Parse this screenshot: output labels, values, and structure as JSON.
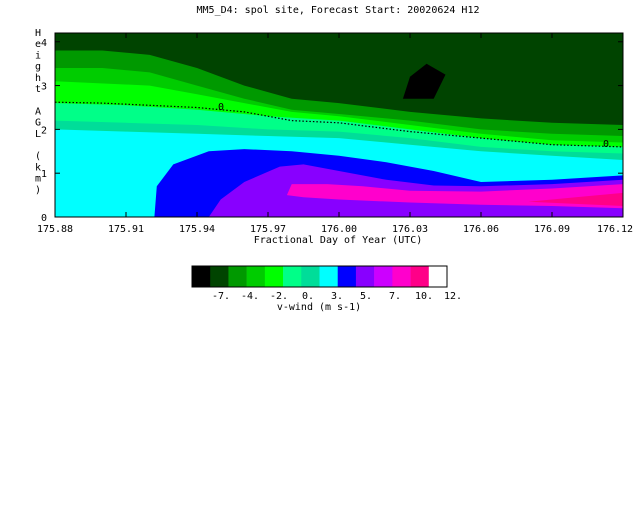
{
  "chart_data": {
    "type": "contour",
    "title": "MM5_D4: spol site,  Forecast Start: 20020624 H12",
    "xlabel": "Fractional Day of Year (UTC)",
    "ylabel": "Height AGL (km)",
    "xlim": [
      175.88,
      176.12
    ],
    "ylim": [
      0,
      4.2
    ],
    "x_ticks": [
      "175.88",
      "175.91",
      "175.94",
      "175.97",
      "176.00",
      "176.03",
      "176.06",
      "176.09",
      "176.12"
    ],
    "x_tick_values": [
      175.88,
      175.91,
      175.94,
      175.97,
      176.0,
      176.03,
      176.06,
      176.09,
      176.12
    ],
    "y_ticks": [
      "0",
      "1",
      "2",
      "3",
      "4"
    ],
    "y_tick_values": [
      0,
      1,
      2,
      3,
      4
    ],
    "zero_contour_labels": [
      "0",
      "0"
    ],
    "colorbar": {
      "label": "v-wind (m s-1)",
      "tick_labels": [
        "-7.",
        "-4.",
        "-2.",
        "0.",
        "3.",
        "5.",
        "7.",
        "10.",
        "12."
      ],
      "colors": [
        "#000000",
        "#004400",
        "#009900",
        "#00cc00",
        "#00ff00",
        "#00ff88",
        "#00dd99",
        "#00ffff",
        "#0000ff",
        "#8800ff",
        "#cc00ff",
        "#ff00cc",
        "#ff0088",
        "#ffffff"
      ]
    },
    "regions": [
      {
        "color": "#004400",
        "outline": [
          [
            175.88,
            4.2
          ],
          [
            176.12,
            4.2
          ],
          [
            176.12,
            0
          ],
          [
            175.88,
            0
          ]
        ]
      },
      {
        "color": "#009900",
        "outline": [
          [
            175.88,
            3.8
          ],
          [
            175.9,
            3.8
          ],
          [
            175.92,
            3.7
          ],
          [
            175.94,
            3.4
          ],
          [
            175.96,
            3.0
          ],
          [
            175.98,
            2.7
          ],
          [
            176.0,
            2.6
          ],
          [
            176.03,
            2.4
          ],
          [
            176.06,
            2.25
          ],
          [
            176.09,
            2.15
          ],
          [
            176.12,
            2.1
          ],
          [
            176.12,
            0
          ],
          [
            175.88,
            0
          ]
        ]
      },
      {
        "color": "#00cc00",
        "outline": [
          [
            175.88,
            3.4
          ],
          [
            175.9,
            3.4
          ],
          [
            175.92,
            3.3
          ],
          [
            175.94,
            3.0
          ],
          [
            175.96,
            2.7
          ],
          [
            175.98,
            2.45
          ],
          [
            176.0,
            2.35
          ],
          [
            176.03,
            2.2
          ],
          [
            176.06,
            2.0
          ],
          [
            176.09,
            1.9
          ],
          [
            176.12,
            1.85
          ],
          [
            176.12,
            0
          ],
          [
            175.88,
            0
          ]
        ]
      },
      {
        "color": "#00ff00",
        "outline": [
          [
            175.88,
            3.1
          ],
          [
            175.92,
            3.0
          ],
          [
            175.94,
            2.8
          ],
          [
            175.96,
            2.6
          ],
          [
            175.98,
            2.4
          ],
          [
            176.0,
            2.3
          ],
          [
            176.03,
            2.1
          ],
          [
            176.06,
            1.9
          ],
          [
            176.09,
            1.75
          ],
          [
            176.12,
            1.7
          ],
          [
            176.12,
            0
          ],
          [
            175.88,
            0
          ]
        ]
      },
      {
        "color": "#00ff88",
        "outline": [
          [
            175.88,
            2.6
          ],
          [
            175.91,
            2.55
          ],
          [
            175.94,
            2.45
          ],
          [
            175.97,
            2.3
          ],
          [
            176.0,
            2.2
          ],
          [
            176.03,
            2.0
          ],
          [
            176.06,
            1.8
          ],
          [
            176.09,
            1.65
          ],
          [
            176.12,
            1.6
          ],
          [
            176.12,
            0
          ],
          [
            175.88,
            0
          ]
        ]
      },
      {
        "color": "#00dd99",
        "outline": [
          [
            175.88,
            2.2
          ],
          [
            175.91,
            2.15
          ],
          [
            175.94,
            2.1
          ],
          [
            175.97,
            2.0
          ],
          [
            176.0,
            1.95
          ],
          [
            176.03,
            1.8
          ],
          [
            176.06,
            1.6
          ],
          [
            176.09,
            1.5
          ],
          [
            176.12,
            1.45
          ],
          [
            176.12,
            0
          ],
          [
            175.88,
            0
          ]
        ]
      },
      {
        "color": "#00ffff",
        "outline": [
          [
            175.88,
            2.0
          ],
          [
            175.91,
            1.95
          ],
          [
            175.94,
            1.9
          ],
          [
            175.97,
            1.85
          ],
          [
            176.0,
            1.8
          ],
          [
            176.03,
            1.65
          ],
          [
            176.06,
            1.5
          ],
          [
            176.09,
            1.4
          ],
          [
            176.12,
            1.3
          ],
          [
            176.12,
            0
          ],
          [
            175.88,
            0
          ]
        ]
      },
      {
        "color": "#0000ff",
        "outline": [
          [
            175.922,
            0
          ],
          [
            175.923,
            0.7
          ],
          [
            175.93,
            1.2
          ],
          [
            175.945,
            1.5
          ],
          [
            175.96,
            1.55
          ],
          [
            175.98,
            1.5
          ],
          [
            176.0,
            1.4
          ],
          [
            176.02,
            1.25
          ],
          [
            176.04,
            1.05
          ],
          [
            176.06,
            0.8
          ],
          [
            176.09,
            0.85
          ],
          [
            176.12,
            0.95
          ],
          [
            176.12,
            0
          ]
        ]
      },
      {
        "color": "#8800ff",
        "outline": [
          [
            175.945,
            0
          ],
          [
            175.95,
            0.4
          ],
          [
            175.96,
            0.8
          ],
          [
            175.975,
            1.15
          ],
          [
            175.985,
            1.2
          ],
          [
            176.0,
            1.05
          ],
          [
            176.02,
            0.85
          ],
          [
            176.04,
            0.72
          ],
          [
            176.06,
            0.7
          ],
          [
            176.09,
            0.75
          ],
          [
            176.12,
            0.85
          ],
          [
            176.12,
            0
          ]
        ]
      },
      {
        "color": "#ff00cc",
        "outline": [
          [
            175.978,
            0.5
          ],
          [
            175.98,
            0.75
          ],
          [
            175.995,
            0.75
          ],
          [
            176.01,
            0.7
          ],
          [
            176.03,
            0.6
          ],
          [
            176.06,
            0.58
          ],
          [
            176.09,
            0.65
          ],
          [
            176.12,
            0.75
          ],
          [
            176.12,
            0.2
          ],
          [
            176.09,
            0.25
          ],
          [
            176.06,
            0.28
          ],
          [
            176.03,
            0.33
          ],
          [
            176.0,
            0.4
          ],
          [
            175.985,
            0.45
          ]
        ]
      },
      {
        "color": "#ff0088",
        "outline": [
          [
            176.08,
            0.35
          ],
          [
            176.1,
            0.45
          ],
          [
            176.12,
            0.55
          ],
          [
            176.12,
            0.25
          ],
          [
            176.1,
            0.3
          ]
        ]
      },
      {
        "color": "#000000",
        "outline": [
          [
            176.027,
            2.7
          ],
          [
            176.03,
            3.2
          ],
          [
            176.037,
            3.5
          ],
          [
            176.045,
            3.25
          ],
          [
            176.04,
            2.7
          ]
        ]
      }
    ],
    "zero_contour": [
      [
        175.88,
        2.62
      ],
      [
        175.9,
        2.6
      ],
      [
        175.92,
        2.55
      ],
      [
        175.94,
        2.5
      ],
      [
        175.96,
        2.4
      ],
      [
        175.98,
        2.2
      ],
      [
        176.0,
        2.15
      ],
      [
        176.03,
        1.95
      ],
      [
        176.06,
        1.8
      ],
      [
        176.09,
        1.65
      ],
      [
        176.12,
        1.6
      ]
    ]
  }
}
